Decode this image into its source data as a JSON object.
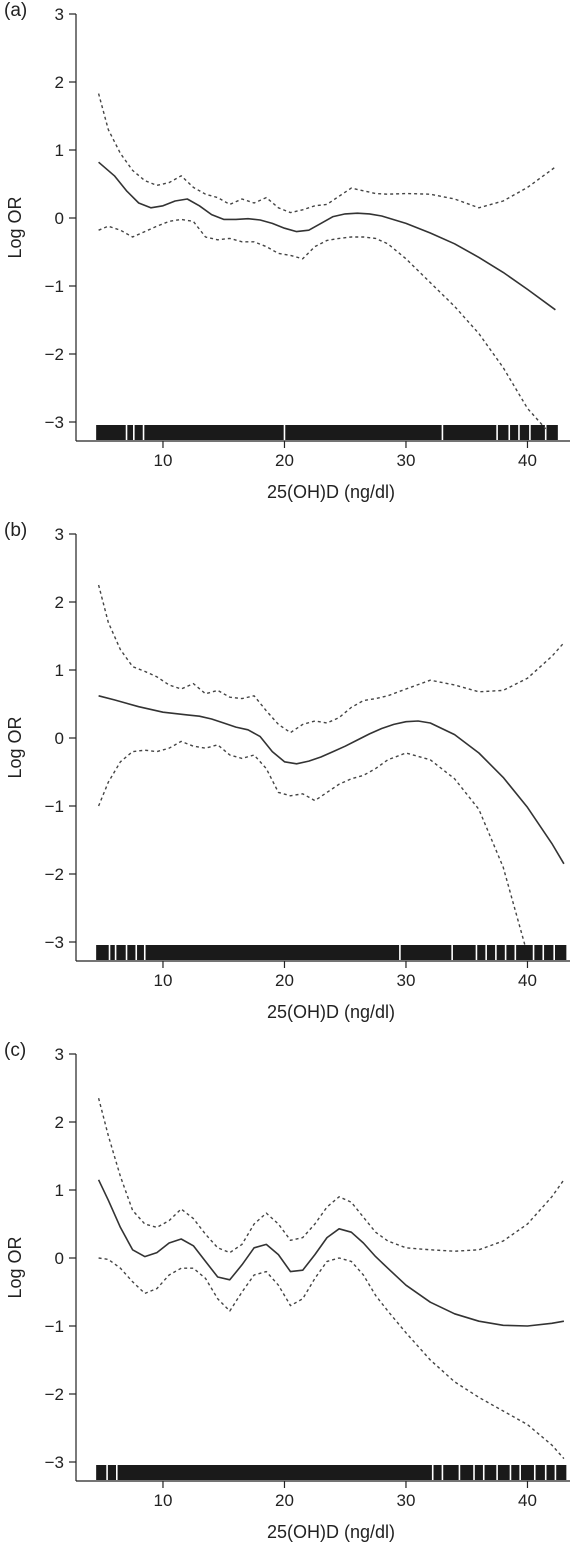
{
  "chart_data": [
    {
      "panel": "(a)",
      "type": "line",
      "xlabel": "25(OH)D (ng/dl)",
      "ylabel": "Log OR",
      "xlim": [
        3.5,
        43.5
      ],
      "ylim": [
        -3.2,
        3
      ],
      "xticks": [
        10,
        20,
        30,
        40
      ],
      "yticks": [
        3,
        2,
        1,
        0,
        -1,
        -2,
        -3
      ],
      "rug_range": [
        4.5,
        42.5
      ],
      "rug_white": [
        7.0,
        7.6,
        8.4,
        20.0,
        33.0,
        37.5,
        38.5,
        39.3,
        40.2,
        41.5
      ],
      "series": [
        {
          "style": "solid",
          "x": [
            4.7,
            6,
            7,
            8,
            9,
            10,
            11,
            12,
            13,
            14,
            15,
            16,
            17,
            18,
            19,
            20,
            21,
            22,
            23,
            24,
            25,
            26,
            27,
            28,
            30,
            32,
            34,
            36,
            38,
            40,
            42.3
          ],
          "y": [
            0.82,
            0.62,
            0.4,
            0.22,
            0.15,
            0.18,
            0.25,
            0.28,
            0.18,
            0.05,
            -0.02,
            -0.02,
            -0.01,
            -0.03,
            -0.08,
            -0.15,
            -0.2,
            -0.18,
            -0.08,
            0.02,
            0.06,
            0.07,
            0.06,
            0.03,
            -0.08,
            -0.22,
            -0.38,
            -0.58,
            -0.8,
            -1.05,
            -1.35
          ]
        },
        {
          "style": "dashed",
          "x": [
            4.7,
            5.5,
            6.5,
            7.5,
            8.5,
            9.5,
            10.5,
            11.5,
            12.5,
            13.5,
            14.5,
            15.5,
            16.5,
            17.5,
            18.5,
            19.5,
            20.5,
            21.5,
            22.5,
            23.5,
            24.5,
            25.5,
            26.5,
            27.5,
            28.5,
            30,
            32,
            34,
            36,
            38,
            40,
            42.3
          ],
          "y": [
            1.83,
            1.3,
            0.95,
            0.7,
            0.55,
            0.48,
            0.52,
            0.62,
            0.45,
            0.35,
            0.3,
            0.2,
            0.28,
            0.22,
            0.3,
            0.15,
            0.08,
            0.12,
            0.18,
            0.2,
            0.32,
            0.44,
            0.4,
            0.36,
            0.35,
            0.36,
            0.35,
            0.28,
            0.15,
            0.25,
            0.45,
            0.75
          ]
        },
        {
          "style": "dashed",
          "x": [
            4.7,
            5.5,
            6.5,
            7.5,
            8.5,
            9.5,
            10.5,
            11.5,
            12.5,
            13.5,
            14.5,
            15.5,
            16.5,
            17.5,
            18.5,
            19.5,
            20.5,
            21.5,
            22.5,
            23.5,
            24.5,
            25.5,
            26.5,
            27.5,
            28.5,
            30,
            32,
            34,
            36,
            38,
            40,
            41.5
          ],
          "y": [
            -0.18,
            -0.12,
            -0.18,
            -0.28,
            -0.2,
            -0.12,
            -0.05,
            -0.02,
            -0.05,
            -0.28,
            -0.32,
            -0.3,
            -0.35,
            -0.35,
            -0.42,
            -0.52,
            -0.55,
            -0.6,
            -0.42,
            -0.33,
            -0.3,
            -0.28,
            -0.28,
            -0.3,
            -0.38,
            -0.6,
            -0.95,
            -1.3,
            -1.7,
            -2.2,
            -2.8,
            -3.1
          ]
        }
      ]
    },
    {
      "panel": "(b)",
      "type": "line",
      "xlabel": "25(OH)D (ng/dl)",
      "ylabel": "Log OR",
      "xlim": [
        3.5,
        43.5
      ],
      "ylim": [
        -3.2,
        3
      ],
      "xticks": [
        10,
        20,
        30,
        40
      ],
      "yticks": [
        3,
        2,
        1,
        0,
        -1,
        -2,
        -3
      ],
      "rug_range": [
        4.5,
        43.2
      ],
      "rug_white": [
        5.6,
        6.1,
        7.0,
        7.8,
        8.5,
        29.5,
        33.8,
        35.8,
        36.6,
        37.4,
        38.2,
        39.0,
        40.5,
        41.3,
        42.2
      ],
      "series": [
        {
          "style": "solid",
          "x": [
            4.7,
            6,
            8,
            10,
            12,
            13,
            14,
            15,
            16,
            17,
            18,
            19,
            20,
            21,
            22,
            23,
            24,
            25,
            26,
            27,
            28,
            29,
            30,
            31,
            32,
            34,
            36,
            38,
            40,
            42,
            43
          ],
          "y": [
            0.62,
            0.56,
            0.46,
            0.38,
            0.34,
            0.32,
            0.28,
            0.22,
            0.16,
            0.12,
            0.02,
            -0.2,
            -0.35,
            -0.38,
            -0.34,
            -0.28,
            -0.2,
            -0.12,
            -0.03,
            0.06,
            0.14,
            0.2,
            0.24,
            0.25,
            0.22,
            0.05,
            -0.22,
            -0.58,
            -1.02,
            -1.55,
            -1.85
          ]
        },
        {
          "style": "dashed",
          "x": [
            4.7,
            5.5,
            6.5,
            7.5,
            8.5,
            9.5,
            10.5,
            11.5,
            12.5,
            13.5,
            14.5,
            15.5,
            16.5,
            17.5,
            18.5,
            19.5,
            20.5,
            21.5,
            22.5,
            23.5,
            24.5,
            25.5,
            26.5,
            27.5,
            28.5,
            30,
            32,
            34,
            36,
            38,
            40,
            42,
            43
          ],
          "y": [
            2.25,
            1.7,
            1.3,
            1.05,
            0.98,
            0.9,
            0.78,
            0.72,
            0.8,
            0.65,
            0.7,
            0.6,
            0.58,
            0.62,
            0.4,
            0.2,
            0.08,
            0.2,
            0.25,
            0.22,
            0.3,
            0.45,
            0.55,
            0.58,
            0.62,
            0.72,
            0.85,
            0.78,
            0.68,
            0.7,
            0.88,
            1.2,
            1.4
          ]
        },
        {
          "style": "dashed",
          "x": [
            4.7,
            5.5,
            6.5,
            7.5,
            8.5,
            9.5,
            10.5,
            11.5,
            12.5,
            13.5,
            14.5,
            15.5,
            16.5,
            17.5,
            18.5,
            19.5,
            20.5,
            21.5,
            22.5,
            23.5,
            24.5,
            25.5,
            26.5,
            27.5,
            28.5,
            30,
            32,
            34,
            36,
            38,
            39.8
          ],
          "y": [
            -1.0,
            -0.65,
            -0.35,
            -0.2,
            -0.18,
            -0.2,
            -0.15,
            -0.05,
            -0.12,
            -0.15,
            -0.1,
            -0.25,
            -0.3,
            -0.25,
            -0.45,
            -0.8,
            -0.85,
            -0.82,
            -0.92,
            -0.8,
            -0.68,
            -0.6,
            -0.55,
            -0.45,
            -0.32,
            -0.22,
            -0.32,
            -0.6,
            -1.05,
            -1.9,
            -3.05
          ]
        }
      ]
    },
    {
      "panel": "(c)",
      "type": "line",
      "xlabel": "25(OH)D (ng/dl)",
      "ylabel": "Log OR",
      "xlim": [
        3.5,
        43.5
      ],
      "ylim": [
        -3.2,
        3
      ],
      "xticks": [
        10,
        20,
        30,
        40
      ],
      "yticks": [
        3,
        2,
        1,
        0,
        -1,
        -2,
        -3
      ],
      "rug_range": [
        4.5,
        43.2
      ],
      "rug_white": [
        5.4,
        6.2,
        32.2,
        33.0,
        34.4,
        35.6,
        36.4,
        37.5,
        38.6,
        39.4,
        40.6,
        41.5,
        42.3
      ],
      "series": [
        {
          "style": "solid",
          "x": [
            4.7,
            5.5,
            6.5,
            7.5,
            8.5,
            9.5,
            10.5,
            11.5,
            12.5,
            13.5,
            14.5,
            15.5,
            16.5,
            17.5,
            18.5,
            19.5,
            20.5,
            21.5,
            22.5,
            23.5,
            24.5,
            25.5,
            26.5,
            27.5,
            28.5,
            30,
            32,
            34,
            36,
            38,
            40,
            42,
            43
          ],
          "y": [
            1.15,
            0.85,
            0.45,
            0.12,
            0.02,
            0.08,
            0.22,
            0.28,
            0.18,
            -0.05,
            -0.28,
            -0.32,
            -0.1,
            0.15,
            0.2,
            0.05,
            -0.2,
            -0.18,
            0.05,
            0.3,
            0.43,
            0.38,
            0.22,
            0.02,
            -0.15,
            -0.4,
            -0.65,
            -0.82,
            -0.93,
            -0.99,
            -1.0,
            -0.96,
            -0.93
          ]
        },
        {
          "style": "dashed",
          "x": [
            4.7,
            5.5,
            6.5,
            7.5,
            8.5,
            9.5,
            10.5,
            11.5,
            12.5,
            13.5,
            14.5,
            15.5,
            16.5,
            17.5,
            18.5,
            19.5,
            20.5,
            21.5,
            22.5,
            23.5,
            24.5,
            25.5,
            26.5,
            27.5,
            28.5,
            30,
            32,
            34,
            36,
            38,
            40,
            42,
            43
          ],
          "y": [
            2.35,
            1.8,
            1.2,
            0.7,
            0.5,
            0.45,
            0.55,
            0.72,
            0.58,
            0.35,
            0.15,
            0.08,
            0.2,
            0.5,
            0.66,
            0.5,
            0.26,
            0.3,
            0.5,
            0.75,
            0.9,
            0.82,
            0.6,
            0.38,
            0.25,
            0.15,
            0.12,
            0.1,
            0.12,
            0.25,
            0.5,
            0.9,
            1.15
          ]
        },
        {
          "style": "dashed",
          "x": [
            4.7,
            5.5,
            6.5,
            7.5,
            8.5,
            9.5,
            10.5,
            11.5,
            12.5,
            13.5,
            14.5,
            15.5,
            16.5,
            17.5,
            18.5,
            19.5,
            20.5,
            21.5,
            22.5,
            23.5,
            24.5,
            25.5,
            26.5,
            27.5,
            28.5,
            30,
            32,
            34,
            36,
            38,
            40,
            42,
            43
          ],
          "y": [
            0.0,
            -0.02,
            -0.15,
            -0.35,
            -0.52,
            -0.45,
            -0.25,
            -0.15,
            -0.15,
            -0.3,
            -0.6,
            -0.78,
            -0.5,
            -0.25,
            -0.2,
            -0.4,
            -0.7,
            -0.6,
            -0.3,
            -0.05,
            0.0,
            -0.05,
            -0.25,
            -0.55,
            -0.78,
            -1.1,
            -1.5,
            -1.82,
            -2.05,
            -2.25,
            -2.45,
            -2.75,
            -2.95
          ]
        }
      ]
    }
  ]
}
